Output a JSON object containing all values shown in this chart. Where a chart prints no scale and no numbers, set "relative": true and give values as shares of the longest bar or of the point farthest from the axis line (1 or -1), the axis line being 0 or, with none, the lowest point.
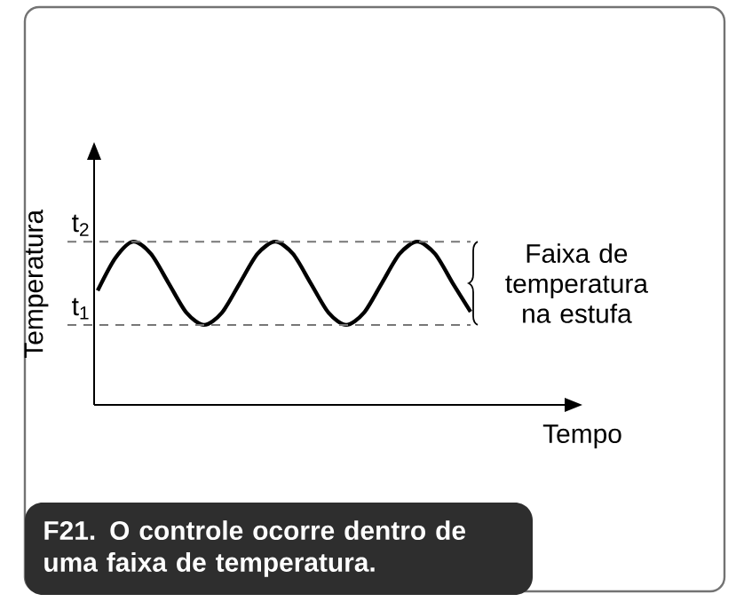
{
  "chart_data": {
    "type": "line",
    "relative": true,
    "xlabel": "Tempo",
    "ylabel": "Temperatura",
    "categories": [
      null,
      null,
      null,
      null,
      null,
      null,
      null,
      null,
      null,
      null,
      null,
      null,
      null,
      null,
      null,
      null,
      null,
      null,
      null,
      null,
      null,
      null
    ],
    "series": [
      {
        "color": "#000000",
        "values": [
          0.7,
          0.9,
          1,
          0.925,
          0.745,
          0.565,
          0.49,
          0.565,
          0.745,
          0.925,
          1,
          0.925,
          0.745,
          0.565,
          0.49,
          0.565,
          0.745,
          0.925,
          1,
          0.925,
          0.745,
          0.57
        ]
      }
    ],
    "ref_lines": [
      {
        "axis": "y",
        "value": 1,
        "label": "t$_{2}$",
        "line_style": "dashed",
        "color": "#777777"
      },
      {
        "axis": "y",
        "value": 0.49,
        "label": "t$_{1}$",
        "line_style": "dashed",
        "color": "#777777"
      }
    ],
    "annotations": [
      "Faixa de temperatura na estufa",
      "F21. O controle ocorre dentro de uma faixa de temperatura."
    ]
  }
}
